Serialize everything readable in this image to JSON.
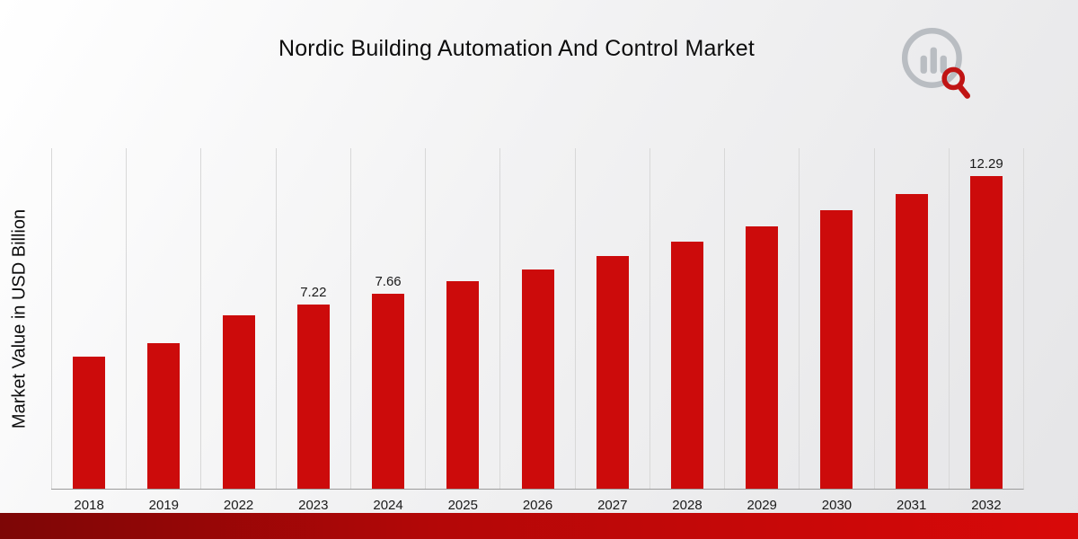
{
  "page": {
    "title": "Nordic Building Automation And Control Market",
    "ylabel": "Market Value in USD Billion"
  },
  "chart_data": {
    "type": "bar",
    "title": "Nordic Building Automation And Control Market",
    "xlabel": "",
    "ylabel": "Market Value in USD Billion",
    "categories": [
      "2018",
      "2019",
      "2022",
      "2023",
      "2024",
      "2025",
      "2026",
      "2027",
      "2028",
      "2029",
      "2030",
      "2031",
      "2032"
    ],
    "values": [
      5.2,
      5.7,
      6.81,
      7.22,
      7.66,
      8.13,
      8.62,
      9.15,
      9.7,
      10.29,
      10.92,
      11.58,
      12.29
    ],
    "data_labels": {
      "2023": "7.22",
      "2024": "7.66",
      "2032": "12.29"
    },
    "bar_color": "#cc0b0b",
    "ylim": [
      0,
      13.4
    ],
    "grid": "vertical",
    "legend": "none"
  }
}
